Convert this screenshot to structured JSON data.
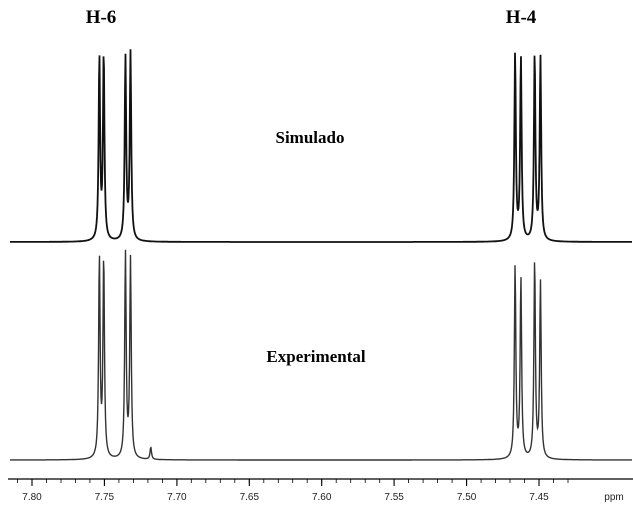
{
  "chart_data": {
    "type": "line",
    "xlabel": "ppm",
    "x_reversed": true,
    "xlim": [
      7.82,
      7.43
    ],
    "x_ticks": [
      {
        "value": 7.8,
        "label": "7.80"
      },
      {
        "value": 7.75,
        "label": "7.75"
      },
      {
        "value": 7.7,
        "label": "7.70"
      },
      {
        "value": 7.65,
        "label": "7.65"
      },
      {
        "value": 7.6,
        "label": "7.60"
      },
      {
        "value": 7.55,
        "label": "7.55"
      },
      {
        "value": 7.5,
        "label": "7.50"
      },
      {
        "value": 7.45,
        "label": "7.45"
      }
    ],
    "peak_labels": [
      {
        "label": "H-6",
        "ppm": 7.745
      },
      {
        "label": "H-4",
        "ppm": 7.458
      }
    ],
    "series": [
      {
        "name": "Simulado",
        "color": "#111111",
        "peaks": [
          {
            "ppm": 7.7535,
            "intensity": 0.94
          },
          {
            "ppm": 7.7505,
            "intensity": 0.96
          },
          {
            "ppm": 7.7355,
            "intensity": 0.94
          },
          {
            "ppm": 7.732,
            "intensity": 0.96
          },
          {
            "ppm": 7.4665,
            "intensity": 0.96
          },
          {
            "ppm": 7.4625,
            "intensity": 0.94
          },
          {
            "ppm": 7.453,
            "intensity": 0.96
          },
          {
            "ppm": 7.449,
            "intensity": 0.94
          }
        ]
      },
      {
        "name": "Experimental",
        "color": "#333333",
        "peaks": [
          {
            "ppm": 7.7535,
            "intensity": 0.98
          },
          {
            "ppm": 7.7505,
            "intensity": 0.98
          },
          {
            "ppm": 7.7355,
            "intensity": 1.0
          },
          {
            "ppm": 7.732,
            "intensity": 0.97
          },
          {
            "ppm": 7.718,
            "intensity": 0.06
          },
          {
            "ppm": 7.4665,
            "intensity": 0.94
          },
          {
            "ppm": 7.4625,
            "intensity": 0.88
          },
          {
            "ppm": 7.453,
            "intensity": 0.97
          },
          {
            "ppm": 7.449,
            "intensity": 0.86
          }
        ]
      }
    ]
  }
}
